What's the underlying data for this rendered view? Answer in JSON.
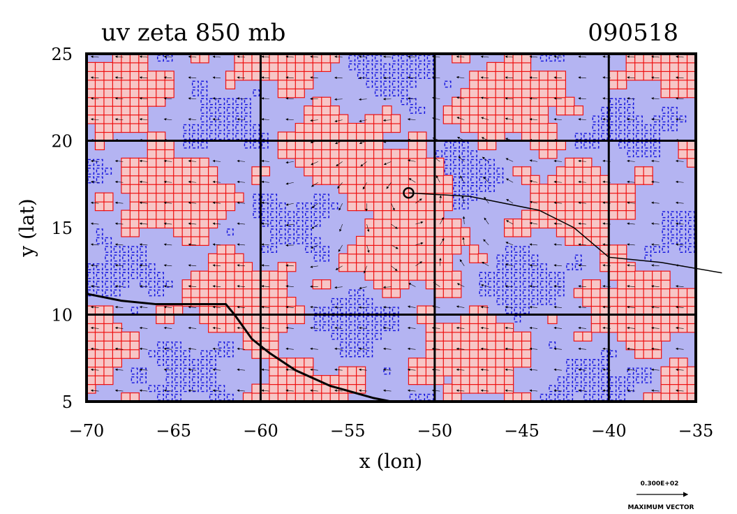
{
  "chart_data": {
    "type": "heatmap",
    "title": "uv zeta 850 mb",
    "title_right": "090518",
    "xlabel": "x (lon)",
    "ylabel": "y (lat)",
    "xlim": [
      -70,
      -35
    ],
    "ylim": [
      5,
      25
    ],
    "x_ticks": [
      -70,
      -65,
      -60,
      -55,
      -50,
      -45,
      -40,
      -35
    ],
    "x_tick_labels": [
      "−70",
      "−65",
      "−60",
      "−55",
      "−50",
      "−45",
      "−40",
      "−35"
    ],
    "y_ticks": [
      5,
      10,
      15,
      20,
      25
    ],
    "y_tick_labels": [
      "5",
      "10",
      "15",
      "20",
      "25"
    ],
    "grid": true,
    "grid_x": [
      -60,
      -50,
      -40
    ],
    "grid_y": [
      10,
      20
    ],
    "colors": {
      "positive_fill": "#f7c6c6",
      "negative_fill": "#b4b4f2",
      "positive_contour": "#ee1111",
      "negative_contour": "#1111dd",
      "coast": "#000000"
    },
    "vortex_center": {
      "lon": -51.5,
      "lat": 17.0
    },
    "track": [
      {
        "lon": -51.5,
        "lat": 17.0
      },
      {
        "lon": -48,
        "lat": 16.8
      },
      {
        "lon": -44,
        "lat": 16.0
      },
      {
        "lon": -42,
        "lat": 15.0
      },
      {
        "lon": -40,
        "lat": 13.3
      },
      {
        "lon": -37,
        "lat": 13.0
      },
      {
        "lon": -33.5,
        "lat": 12.4
      }
    ],
    "coastline": [
      {
        "lon": -70,
        "lat": 11.2
      },
      {
        "lon": -68,
        "lat": 10.8
      },
      {
        "lon": -66,
        "lat": 10.6
      },
      {
        "lon": -64,
        "lat": 10.6
      },
      {
        "lon": -62,
        "lat": 10.6
      },
      {
        "lon": -61.5,
        "lat": 10.0
      },
      {
        "lon": -60.5,
        "lat": 8.6
      },
      {
        "lon": -59.5,
        "lat": 7.8
      },
      {
        "lon": -58,
        "lat": 6.8
      },
      {
        "lon": -56,
        "lat": 5.9
      },
      {
        "lon": -53.5,
        "lat": 5.2
      },
      {
        "lon": -52.5,
        "lat": 5.0
      }
    ],
    "vector_key": {
      "magnitude_label": "0.300E+02",
      "caption": "MAXIMUM VECTOR"
    }
  }
}
